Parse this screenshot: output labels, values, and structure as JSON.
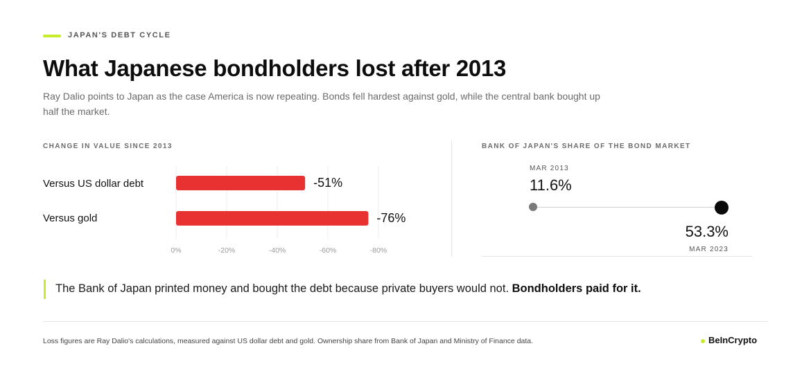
{
  "kicker": "JAPAN'S DEBT CYCLE",
  "title": "What Japanese bondholders lost after 2013",
  "subtitle": "Ray Dalio points to Japan as the case America is now repeating. Bonds fell hardest against gold, while the central bank bought up half the market.",
  "colors": {
    "accent": "#c6ec2a",
    "bar": "#e83232",
    "start_dot": "#7a7a7a",
    "end_dot": "#0a0a0a"
  },
  "chart_data": [
    {
      "type": "bar",
      "orientation": "horizontal",
      "title": "CHANGE IN VALUE SINCE 2013",
      "categories": [
        "Versus US dollar debt",
        "Versus gold"
      ],
      "values": [
        -51,
        -76
      ],
      "value_labels": [
        "-51%",
        "-76%"
      ],
      "xlim": [
        0,
        -80
      ],
      "x_ticks": [
        0,
        -20,
        -40,
        -60,
        -80
      ],
      "x_tick_labels": [
        "0%",
        "-20%",
        "-40%",
        "-60%",
        "-80%"
      ],
      "grid": true
    },
    {
      "type": "dot-range",
      "title": "BANK OF JAPAN'S SHARE OF THE BOND MARKET",
      "start": {
        "label": "MAR 2013",
        "value": 11.6,
        "display": "11.6%"
      },
      "end": {
        "label": "MAR 2023",
        "value": 53.3,
        "display": "53.3%"
      }
    }
  ],
  "quote": {
    "text": "The Bank of Japan printed money and bought the debt because private buyers would not. ",
    "emphasis": "Bondholders paid for it."
  },
  "footnote": "Loss figures are Ray Dalio's calculations, measured against US dollar debt and gold. Ownership share from Bank of Japan and Ministry of Finance data.",
  "brand": "BeInCrypto"
}
